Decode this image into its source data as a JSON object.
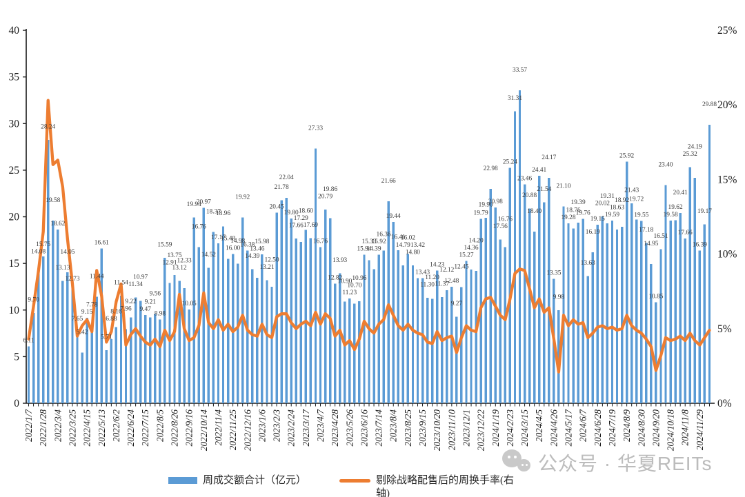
{
  "legend": {
    "items": [
      {
        "label": "周成交额合计（亿元）",
        "color": "#5B9BD5",
        "type": "bar"
      },
      {
        "label": "剔除战略配售后的周换手率(右轴)",
        "color": "#ED7D31",
        "type": "line"
      }
    ]
  },
  "watermark": {
    "text": "公众号 · 华夏REITs"
  },
  "chart_data": {
    "type": "bar",
    "subtype": "combo-bar-line-dual-axis",
    "grid": "off",
    "legend_position": "bottom",
    "x_tick_every": 3,
    "x_tick_labels": [
      "2022/1/7",
      "2022/1/28",
      "2022/3/4",
      "2022/3/25",
      "2022/4/15",
      "2022/5/13",
      "2022/6/2",
      "2022/6/24",
      "2022/7/15",
      "2022/8/5",
      "2022/8/26",
      "2022/9/16",
      "2022/10/14",
      "2022/11/4",
      "2022/11/25",
      "2022/12/16",
      "2023/1/6",
      "2023/2/3",
      "2023/2/24",
      "2023/3/17",
      "2023/4/7",
      "2023/4/28",
      "2023/5/26",
      "2023/6/16",
      "2023/7/14",
      "2023/8/4",
      "2023/8/25",
      "2023/9/15",
      "2023/10/20",
      "2023/11/10",
      "2023/12/1",
      "2023/12/22",
      "2024/1/19",
      "2024/2/23",
      "2024/3/15",
      "2024/4/5",
      "2024/4/26",
      "2024/5/17",
      "2024/6/7",
      "2024/6/28",
      "2024/7/19",
      "2024/8/9",
      "2024/8/30",
      "2024/9/20",
      "2024/10/18",
      "2024/11/8",
      "2024/11/29"
    ],
    "left_axis": {
      "min": 0,
      "max": 40,
      "ticks": [
        0,
        5,
        10,
        15,
        20,
        25,
        30,
        35,
        40
      ]
    },
    "right_axis": {
      "min": 0,
      "max": 25,
      "tick_values": [
        0,
        5,
        10,
        15,
        20,
        25
      ],
      "tick_labels": [
        "0%",
        "5%",
        "10%",
        "15%",
        "20%",
        "25%"
      ]
    },
    "series": [
      {
        "name": "周成交额合计（亿元）",
        "type": "bar",
        "axis": "left",
        "color": "#5B9BD5",
        "values": [
          "6.11",
          "9.70",
          "14.08",
          "15.75",
          "28.24",
          "19.58",
          "18.62",
          "13.13",
          "14.05",
          "12.73",
          "7.65",
          "5.42",
          "9.15",
          "7.78",
          "11.44",
          "16.61",
          "5.71",
          "6.88",
          "8.16",
          "11.54",
          "7.96",
          "9.22",
          "11.34",
          "10.97",
          "9.47",
          "9.21",
          "9.56",
          "8.98",
          "15.59",
          "12.91",
          "13.75",
          "13.12",
          "12.33",
          "10.05",
          "19.94",
          "16.76",
          "20.97",
          "14.52",
          "18.37",
          "17.17",
          "18.96",
          "15.48",
          "16.00",
          "14.98",
          "19.92",
          "16.38",
          "14.39",
          "13.46",
          "15.98",
          "13.21",
          "12.50",
          "20.45",
          "21.78",
          "22.04",
          "19.80",
          "17.66",
          "17.29",
          "18.60",
          "17.69",
          "27.33",
          "16.76",
          "20.79",
          "19.86",
          "12.82",
          "13.93",
          "10.90",
          "11.23",
          "10.70",
          "10.96",
          "15.94",
          "15.33",
          "14.39",
          "15.92",
          "16.36",
          "21.66",
          "19.44",
          "16.41",
          "14.79",
          "16.02",
          "14.80",
          "13.42",
          "13.43",
          "11.30",
          "11.20",
          "14.23",
          "11.37",
          "12.12",
          "12.48",
          "9.27",
          "12.45",
          "15.27",
          "14.36",
          "14.20",
          "19.79",
          "19.90",
          "22.98",
          "20.98",
          "17.56",
          "16.76",
          "25.24",
          "31.31",
          "33.57",
          "23.46",
          "20.88",
          "18.40",
          "24.41",
          "21.54",
          "24.17",
          "13.35",
          "9.98",
          "21.10",
          "19.28",
          "18.76",
          "19.39",
          "19.76",
          "13.63",
          "16.19",
          "19.15",
          "20.02",
          "19.31",
          "19.59",
          "18.63",
          "18.92",
          "25.92",
          "21.43",
          "19.72",
          "19.55",
          "17.18",
          "14.95",
          "10.85",
          "16.51",
          "23.40",
          "19.58",
          "19.62",
          "20.41",
          "17.66",
          "25.32",
          "24.19",
          "16.39",
          "19.17",
          "29.88"
        ]
      },
      {
        "name": "剔除战略配售后的周换手率(右轴)",
        "type": "line",
        "axis": "right",
        "color": "#ED7D31",
        "values_pct": [
          4.3,
          6.5,
          8.8,
          11.5,
          20.3,
          16.0,
          16.3,
          14.5,
          11.0,
          8.0,
          4.5,
          5.2,
          5.6,
          4.8,
          8.9,
          7.2,
          4.1,
          4.8,
          6.8,
          8.0,
          3.9,
          4.6,
          5.0,
          4.5,
          4.1,
          3.9,
          4.3,
          3.8,
          4.9,
          4.2,
          4.8,
          7.3,
          5.0,
          4.2,
          4.4,
          5.2,
          7.4,
          5.4,
          5.0,
          5.6,
          4.9,
          5.3,
          4.8,
          5.1,
          5.9,
          4.9,
          4.6,
          4.5,
          5.3,
          4.6,
          4.4,
          5.8,
          6.0,
          6.0,
          5.4,
          5.0,
          5.3,
          5.5,
          5.2,
          6.1,
          5.3,
          6.0,
          5.7,
          4.5,
          4.9,
          3.9,
          4.2,
          3.6,
          4.3,
          5.5,
          5.0,
          4.7,
          5.3,
          5.6,
          6.6,
          5.9,
          5.2,
          4.9,
          5.3,
          4.9,
          4.7,
          4.6,
          4.1,
          4.0,
          4.8,
          4.2,
          4.4,
          4.5,
          3.4,
          4.4,
          5.2,
          4.9,
          4.8,
          6.4,
          7.0,
          7.1,
          6.5,
          5.9,
          5.6,
          7.0,
          8.7,
          9.0,
          8.9,
          7.7,
          6.4,
          7.0,
          6.1,
          6.4,
          4.3,
          2.1,
          5.9,
          5.2,
          5.6,
          5.3,
          5.4,
          4.4,
          4.7,
          5.1,
          5.2,
          5.0,
          5.1,
          4.9,
          5.0,
          5.9,
          5.2,
          4.9,
          4.7,
          4.3,
          3.8,
          2.2,
          3.2,
          4.4,
          4.2,
          4.3,
          4.5,
          4.2,
          4.7,
          4.2,
          3.9,
          4.4,
          4.9
        ]
      }
    ]
  }
}
